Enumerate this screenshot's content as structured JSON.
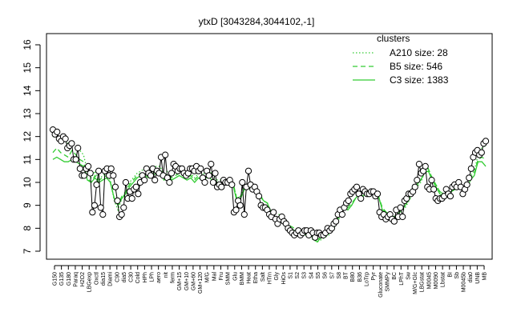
{
  "chart_data": {
    "type": "line",
    "title": "ytxD [3043284,3044102,-1]",
    "ylim": [
      7,
      16
    ],
    "y_ticks": [
      7,
      8,
      9,
      10,
      11,
      12,
      13,
      14,
      15,
      16
    ],
    "legend": {
      "title": "clusters",
      "placement": "top-right",
      "entries": [
        {
          "label": "A210 size: 28",
          "style": "dotted"
        },
        {
          "label": "B5 size: 546",
          "style": "dashed"
        },
        {
          "label": "C3 size: 1383",
          "style": "solid"
        }
      ]
    },
    "x_tick_labels": [
      "G150",
      "G135",
      "G180",
      "Paraq",
      "H2O2",
      "LBGexp",
      "Oxctl",
      "dia15",
      "Diami",
      "C90",
      "dia5",
      "C30",
      "Cold",
      "HPh",
      "LPh",
      "aero",
      "nit",
      "ferm",
      "GM+15",
      "GM+10",
      "GM+60",
      "GM+120",
      "M/G",
      "Mal",
      "Fru",
      "SMM",
      "Glu",
      "BMM",
      "Heat",
      "Etha",
      "Salt",
      "HTrn",
      "Gly",
      "HiOs",
      "S1",
      "S2",
      "S3",
      "S4",
      "S5",
      "S6",
      "S7",
      "S8",
      "BT",
      "B80",
      "B36",
      "LoTrp",
      "Pyr",
      "Gluconate",
      "SMMPy",
      "BC",
      "LPhT",
      "Sw",
      "M/G+Glc",
      "LBGstat",
      "M0045",
      "M0090",
      "Lbstat",
      "BI",
      "Sb",
      "M0045b",
      "dia0",
      "UNB",
      "MB"
    ],
    "series": [
      {
        "style": "solid",
        "values": [
          11.0,
          11.1,
          11.0,
          10.9,
          10.9,
          11.0,
          10.9,
          10.8,
          10.7,
          10.1,
          10.0,
          10.2,
          10.0,
          10.1,
          10.2,
          10.0,
          9.3,
          9.0,
          9.3,
          9.5,
          9.8,
          10.0,
          10.2,
          10.3,
          10.3,
          10.2,
          10.3,
          10.4,
          10.4,
          10.1,
          10.3,
          10.1,
          10.2,
          10.3,
          10.2,
          10.1,
          10.2,
          10.0,
          10.2,
          10.1,
          10.2,
          10.2,
          10.0,
          9.9,
          9.9,
          9.9,
          9.9,
          9.9,
          9.2,
          9.3,
          9.7,
          9.8,
          9.6,
          9.6,
          9.4,
          9.2,
          9.1,
          8.6,
          8.4,
          8.5,
          8.3,
          8.1,
          8.0,
          7.9,
          7.9,
          7.9,
          7.7,
          7.7,
          7.6,
          7.4,
          7.6,
          7.7,
          7.8,
          8.0,
          8.3,
          8.6,
          9.0,
          8.8,
          9.0,
          9.3,
          9.5,
          9.4,
          9.6,
          9.6,
          9.5,
          9.4,
          8.8,
          8.7,
          8.6,
          8.5,
          8.6,
          8.8,
          9.0,
          9.3,
          9.5,
          9.9,
          10.1,
          10.4,
          10.5,
          10.1,
          9.8,
          9.5,
          9.4,
          9.5,
          9.6,
          9.7,
          9.8,
          9.7,
          9.7,
          10.1,
          10.3,
          10.9,
          10.9,
          10.7
        ]
      },
      {
        "style": "dashed",
        "values": [
          11.3,
          11.5,
          11.3,
          11.2,
          11.1,
          11.4,
          11.2,
          11.0,
          10.9,
          10.2,
          10.0,
          10.3,
          10.1,
          10.2,
          10.3,
          10.0,
          9.3,
          9.0,
          9.4,
          9.6,
          9.9,
          10.1,
          10.3,
          10.4,
          10.4,
          10.3,
          10.4,
          10.5,
          10.5,
          10.2,
          10.4,
          10.2,
          10.3,
          10.4,
          10.3,
          10.2,
          10.3,
          10.1,
          10.3,
          10.2,
          10.3,
          10.3,
          10.1,
          10.0,
          10.0,
          10.0,
          10.0,
          10.0,
          9.3,
          9.4,
          9.8,
          9.9,
          9.7,
          9.7,
          9.5,
          9.2,
          9.1,
          8.7,
          8.5,
          8.6,
          8.4,
          8.2,
          8.1,
          8.0,
          7.9,
          7.8,
          7.7,
          7.7,
          7.6,
          7.5,
          7.6,
          7.7,
          7.8,
          8.0,
          8.3,
          8.6,
          9.0,
          8.9,
          9.1,
          9.3,
          9.5,
          9.5,
          9.6,
          9.7,
          9.6,
          9.4,
          8.9,
          8.7,
          8.6,
          8.5,
          8.6,
          8.8,
          9.0,
          9.3,
          9.6,
          9.9,
          10.1,
          10.5,
          10.6,
          10.2,
          9.9,
          9.6,
          9.5,
          9.5,
          9.6,
          9.7,
          9.8,
          9.8,
          9.8,
          10.2,
          10.4,
          11.0,
          11.1,
          11.0
        ]
      },
      {
        "style": "dotted",
        "values": [
          12.0,
          12.0,
          11.9,
          11.8,
          11.7,
          11.7,
          11.5,
          11.4,
          11.2,
          10.5,
          10.2,
          10.5,
          10.1,
          10.3,
          10.4,
          10.1,
          9.2,
          8.8,
          9.3,
          9.6,
          10.0,
          10.2,
          10.4,
          10.5,
          10.6,
          10.5,
          10.6,
          10.7,
          10.7,
          10.3,
          10.5,
          10.3,
          10.4,
          10.5,
          10.4,
          10.3,
          10.4,
          10.2,
          10.4,
          10.3,
          10.5,
          10.5,
          10.2,
          10.1,
          10.1,
          10.1,
          10.0,
          10.0,
          9.3,
          9.4,
          9.8,
          9.9,
          9.7,
          9.7,
          9.5,
          9.2,
          9.1,
          8.6,
          8.4,
          8.5,
          8.3,
          8.1,
          8.0,
          7.9,
          7.8,
          7.8,
          7.7,
          7.6,
          7.5,
          7.4,
          7.5,
          7.6,
          7.7,
          7.9,
          8.2,
          8.5,
          8.9,
          8.8,
          9.0,
          9.3,
          9.5,
          9.5,
          9.6,
          9.7,
          9.6,
          9.4,
          8.8,
          8.6,
          8.5,
          8.4,
          8.5,
          8.7,
          8.9,
          9.2,
          9.5,
          9.8,
          10.0,
          10.4,
          10.6,
          10.2,
          9.9,
          9.6,
          9.5,
          9.5,
          9.6,
          9.7,
          9.8,
          9.8,
          9.9,
          10.3,
          10.5,
          11.2,
          11.5,
          11.6
        ]
      }
    ],
    "points": [
      12.3,
      12.1,
      12.2,
      11.9,
      11.8,
      12.0,
      11.9,
      11.5,
      11.6,
      11.7,
      11.0,
      11.0,
      11.5,
      10.6,
      10.3,
      10.3,
      10.6,
      10.7,
      10.4,
      8.7,
      9.0,
      9.9,
      10.5,
      8.9,
      8.6,
      10.5,
      10.6,
      10.3,
      10.6,
      10.3,
      9.8,
      9.2,
      8.5,
      8.6,
      8.9,
      10.0,
      9.3,
      9.6,
      9.3,
      9.7,
      9.8,
      9.5,
      10.0,
      10.3,
      10.1,
      10.6,
      10.4,
      10.3,
      10.6,
      10.1,
      10.5,
      10.4,
      11.1,
      10.3,
      11.2,
      10.2,
      10.0,
      10.4,
      10.8,
      10.7,
      10.5,
      10.6,
      10.6,
      10.4,
      10.3,
      10.4,
      10.6,
      10.6,
      10.5,
      10.7,
      10.5,
      10.6,
      10.2,
      10.0,
      10.5,
      10.3,
      10.8,
      10.0,
      10.4,
      9.8,
      9.9,
      9.8,
      10.1,
      10.0,
      10.0,
      10.1,
      9.9,
      8.7,
      8.8,
      9.2,
      9.0,
      10.0,
      8.6,
      9.8,
      10.5,
      9.9,
      9.7,
      9.8,
      9.6,
      9.4,
      9.0,
      8.9,
      8.9,
      8.8,
      8.6,
      8.5,
      8.7,
      8.4,
      8.2,
      8.4,
      8.5,
      8.3,
      8.2,
      8.0,
      7.9,
      7.8,
      7.7,
      7.8,
      7.9,
      7.7,
      7.8,
      7.9,
      7.9,
      7.7,
      7.9,
      7.8,
      7.6,
      7.8,
      7.8,
      7.7,
      7.7,
      7.8,
      8.0,
      7.9,
      8.0,
      8.2,
      8.3,
      8.6,
      8.8,
      8.6,
      8.9,
      9.1,
      9.2,
      9.5,
      9.6,
      9.7,
      9.8,
      9.5,
      9.3,
      9.7,
      9.6,
      9.5,
      9.5,
      9.6,
      9.6,
      9.4,
      9.5,
      8.7,
      8.5,
      8.6,
      8.4,
      8.5,
      8.6,
      8.4,
      8.3,
      8.8,
      8.5,
      8.9,
      8.5,
      9.2,
      9.3,
      9.5,
      9.5,
      9.6,
      9.8,
      10.1,
      10.8,
      10.4,
      10.5,
      10.7,
      9.8,
      9.7,
      10.1,
      9.7,
      9.3,
      9.2,
      9.3,
      9.3,
      9.4,
      9.7,
      9.5,
      9.4,
      9.8,
      9.9,
      9.8,
      10.0,
      9.8,
      9.5,
      9.7,
      9.9,
      10.2,
      10.6,
      11.1,
      11.3,
      11.4,
      11.2,
      11.3,
      11.7,
      11.8
    ]
  }
}
